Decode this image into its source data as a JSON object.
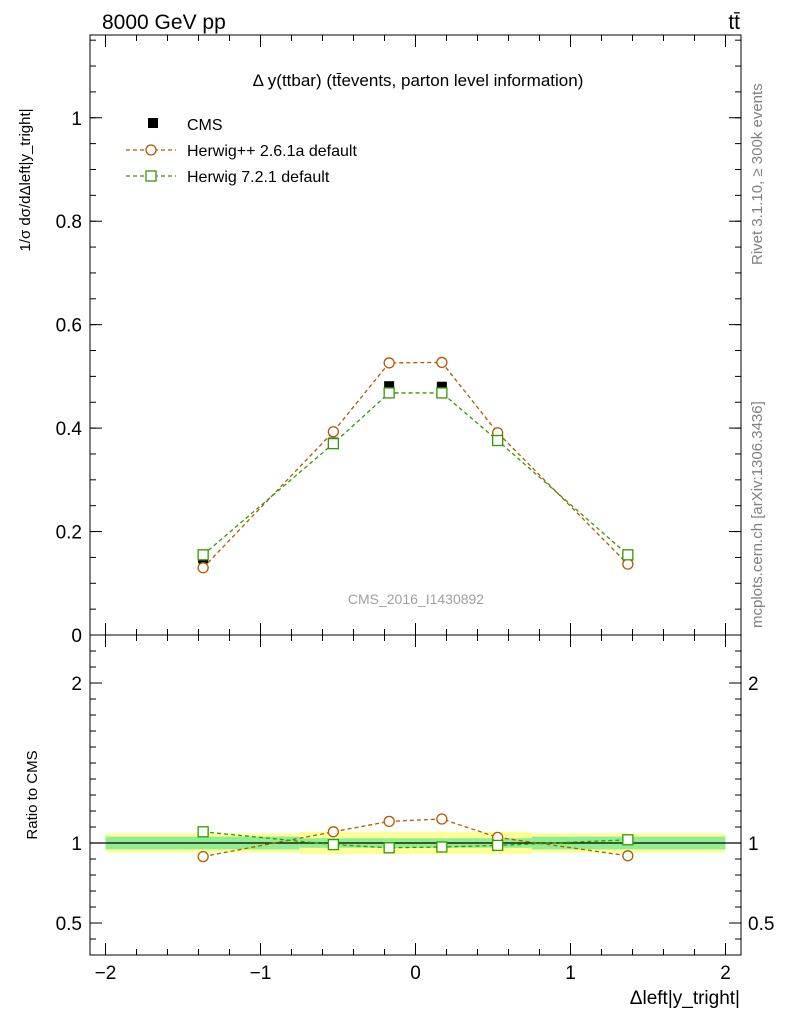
{
  "header": {
    "left": "8000 GeV pp",
    "right": "tt̄"
  },
  "side_labels": {
    "rivet": "Rivet 3.1.10, ≥ 300k events",
    "url": "mcplots.cern.ch [arXiv:1306.3436]"
  },
  "chart_data": {
    "type": "line",
    "title": "Δ y(ttbar) (tt̄events, parton level information)",
    "watermark": "CMS_2016_I1430892",
    "ylabel_main": "1/σ dσ/dΔleft|y_tright|",
    "ylabel_ratio": "Ratio to CMS",
    "xlabel": "Δleft|y_tright|",
    "xlim": [
      -2.1,
      2.1
    ],
    "ylim_main": [
      0,
      1.16
    ],
    "ylim_ratio": [
      0.3,
      2.3
    ],
    "x_ticks": [
      -2,
      -1,
      0,
      1,
      2
    ],
    "x_tick_labels": [
      "−2",
      "−1",
      "0",
      "1",
      "2"
    ],
    "y_ticks_main": [
      0,
      0.2,
      0.4,
      0.6,
      0.8,
      1
    ],
    "y_tick_labels_main": [
      "0",
      "0.2",
      "0.4",
      "0.6",
      "0.8",
      "1"
    ],
    "y_ticks_ratio": [
      0.5,
      1,
      2
    ],
    "y_tick_labels_ratio": [
      "0.5",
      "1",
      "2"
    ],
    "legend_position": "top-left",
    "bins": [
      -2,
      -0.75,
      -0.3,
      0,
      0.3,
      0.75,
      2
    ],
    "x": [
      -1.37,
      -0.53,
      -0.17,
      0.17,
      0.53,
      1.37
    ],
    "series": [
      {
        "name": "CMS",
        "values": [
          0.148,
          0.372,
          0.481,
          0.48,
          0.38,
          0.153
        ],
        "marker": "filled-square",
        "color": "#000000"
      },
      {
        "name": "Herwig++ 2.6.1a default",
        "values": [
          0.13,
          0.393,
          0.526,
          0.527,
          0.391,
          0.137
        ],
        "ratio": [
          0.915,
          1.07,
          1.135,
          1.15,
          1.035,
          0.92
        ],
        "marker": "open-circle",
        "color": "#b35900"
      },
      {
        "name": "Herwig 7.2.1 default",
        "values": [
          0.155,
          0.37,
          0.468,
          0.468,
          0.376,
          0.155
        ],
        "ratio": [
          1.07,
          0.99,
          0.97,
          0.975,
          0.985,
          1.02
        ],
        "marker": "open-square",
        "color": "#339900"
      }
    ],
    "uncertainty_bands": {
      "inner_color": "#90ee90",
      "outer_color": "#ffff99",
      "inner": [
        0.04,
        0.03,
        0.03,
        0.03,
        0.03,
        0.04
      ],
      "outer": [
        0.06,
        0.07,
        0.07,
        0.07,
        0.07,
        0.06
      ]
    }
  }
}
